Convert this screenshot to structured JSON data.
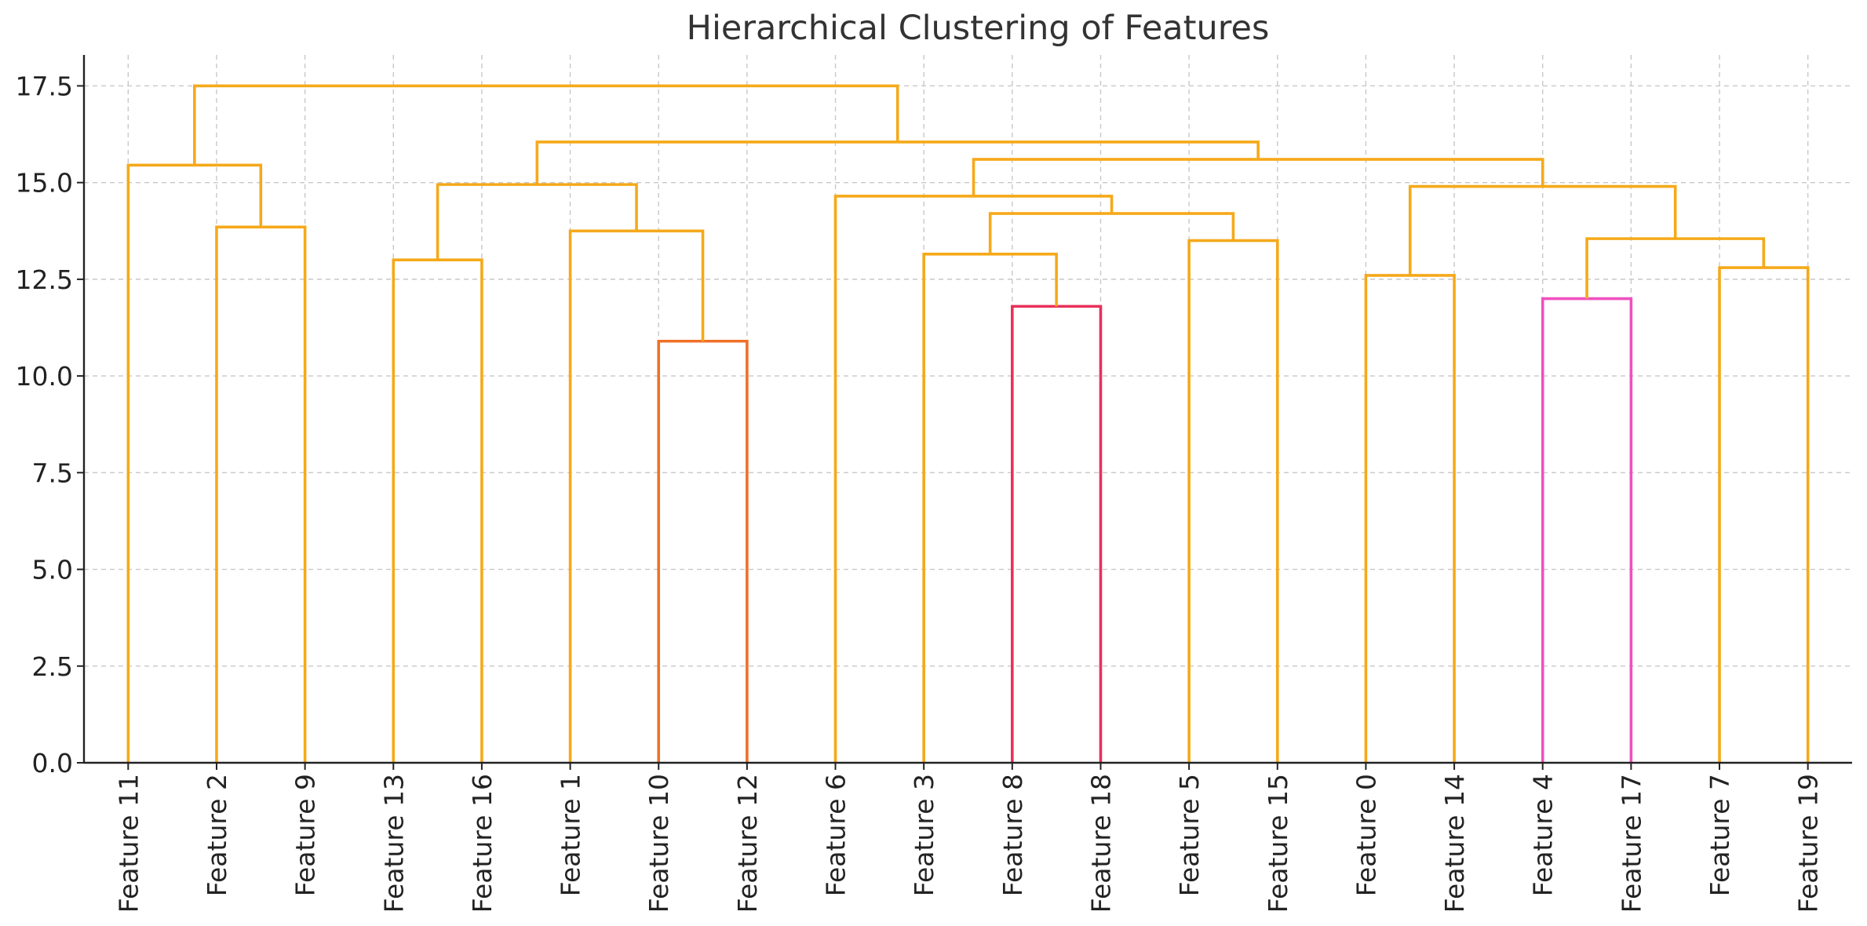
{
  "chart_data": {
    "type": "dendrogram",
    "title": "Hierarchical Clustering of Features",
    "xlabel": "",
    "ylabel": "",
    "ylim": [
      0,
      18.3
    ],
    "yticks": [
      "0.0",
      "2.5",
      "5.0",
      "7.5",
      "10.0",
      "12.5",
      "15.0",
      "17.5"
    ],
    "ytick_values": [
      0,
      2.5,
      5,
      7.5,
      10,
      12.5,
      15,
      17.5
    ],
    "grid": true,
    "leaves": [
      "Feature 11",
      "Feature 2",
      "Feature 9",
      "Feature 13",
      "Feature 16",
      "Feature 1",
      "Feature 10",
      "Feature 12",
      "Feature 6",
      "Feature 3",
      "Feature 8",
      "Feature 18",
      "Feature 5",
      "Feature 15",
      "Feature 0",
      "Feature 14",
      "Feature 4",
      "Feature 17",
      "Feature 7",
      "Feature 19"
    ],
    "merges": [
      {
        "left": "Feature 10",
        "right": "Feature 12",
        "height": 10.9,
        "color": "#f07028"
      },
      {
        "left": "Feature 8",
        "right": "Feature 18",
        "height": 11.8,
        "color": "#e8305a"
      },
      {
        "left": "Feature 4",
        "right": "Feature 17",
        "height": 12.0,
        "color": "#f050c0"
      },
      {
        "left": "Feature 0",
        "right": "Feature 14",
        "height": 12.6,
        "color": "#f5a91a"
      },
      {
        "left": "Feature 7",
        "right": "Feature 19",
        "height": 12.8,
        "color": "#f5a91a"
      },
      {
        "left": "Feature 13",
        "right": "Feature 16",
        "height": 13.0,
        "color": "#f5a91a"
      },
      {
        "left": "Feature 3",
        "right": "C2",
        "height": 13.15,
        "color": "#f5a91a"
      },
      {
        "left": "Feature 5",
        "right": "Feature 15",
        "height": 13.5,
        "color": "#f5a91a"
      },
      {
        "left": "C3",
        "right": "C5",
        "height": 13.55,
        "color": "#f5a91a"
      },
      {
        "left": "Feature 1",
        "right": "C1",
        "height": 13.75,
        "color": "#f5a91a"
      },
      {
        "left": "Feature 2",
        "right": "Feature 9",
        "height": 13.85,
        "color": "#f5a91a"
      },
      {
        "left": "C7",
        "right": "C8",
        "height": 14.2,
        "color": "#f5a91a"
      },
      {
        "left": "Feature 6",
        "right": "C12",
        "height": 14.65,
        "color": "#f5a91a"
      },
      {
        "left": "C4",
        "right": "C9",
        "height": 14.9,
        "color": "#f5a91a"
      },
      {
        "left": "C6",
        "right": "C10",
        "height": 14.95,
        "color": "#f5a91a"
      },
      {
        "left": "Feature 11",
        "right": "C11",
        "height": 15.45,
        "color": "#f5a91a"
      },
      {
        "left": "C13",
        "right": "C14",
        "height": 15.6,
        "color": "#f5a91a"
      },
      {
        "left": "C15",
        "right": "C17",
        "height": 16.05,
        "color": "#f5a91a"
      },
      {
        "left": "C16",
        "right": "C18",
        "height": 17.5,
        "color": "#f5a91a"
      }
    ]
  }
}
